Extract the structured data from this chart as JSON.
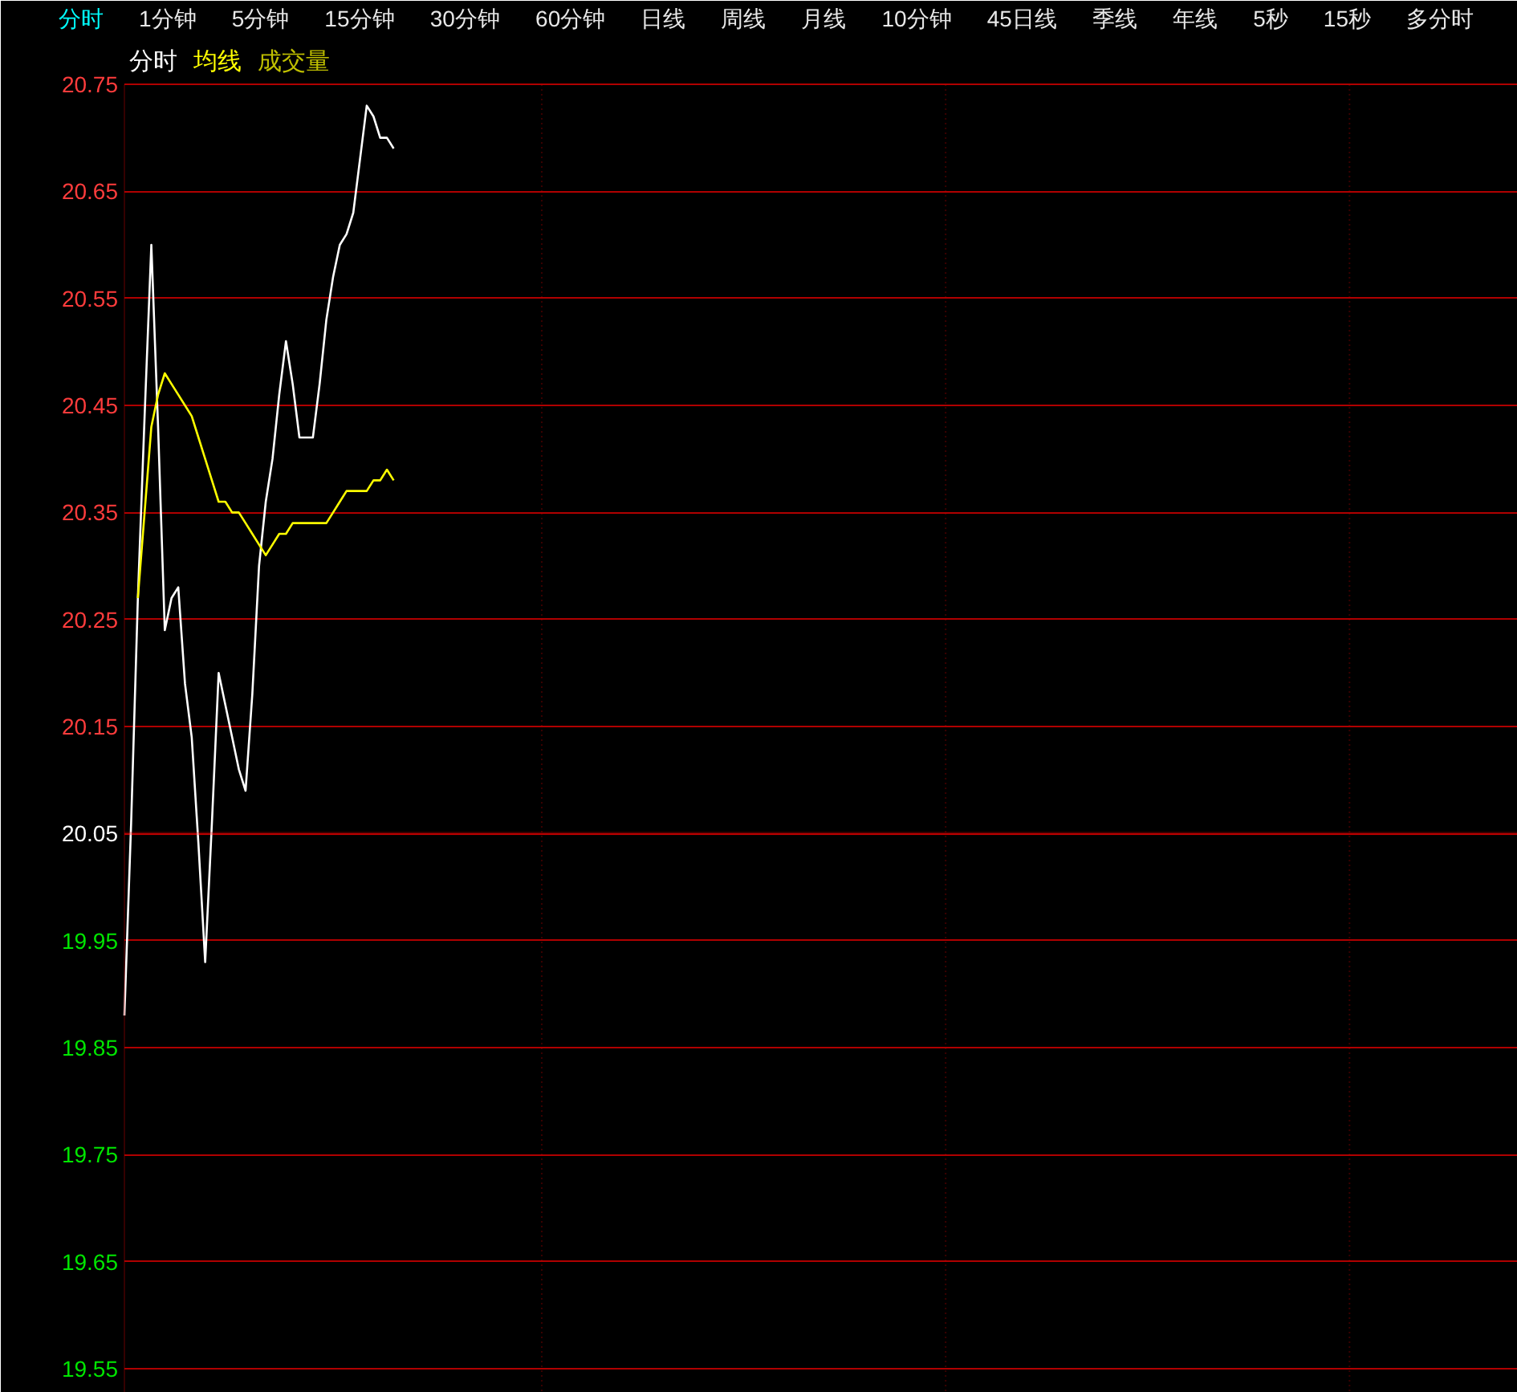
{
  "chart_data": {
    "type": "line",
    "categories": [
      null,
      null,
      null,
      null,
      null,
      null,
      null,
      null,
      null,
      null,
      null,
      null,
      null,
      null,
      null,
      null,
      null,
      null,
      null,
      null,
      null,
      null,
      null,
      null,
      null,
      null,
      null,
      null,
      null,
      null,
      null,
      null,
      null,
      null,
      null,
      null,
      null,
      null,
      null,
      null,
      null,
      null,
      null,
      null,
      null,
      null,
      null,
      null,
      null,
      null,
      null,
      null,
      null,
      null,
      null,
      null,
      null,
      null,
      null,
      null,
      null,
      null,
      null,
      null,
      null,
      null,
      null,
      null,
      null,
      null,
      null,
      null,
      null,
      null,
      null,
      null,
      null,
      null,
      null,
      null,
      null,
      null,
      null,
      null,
      null,
      null,
      null,
      null,
      null,
      null,
      null,
      null,
      null,
      null,
      null,
      null,
      null,
      null,
      null,
      null,
      null,
      null,
      null,
      null,
      null,
      null,
      null,
      null,
      null,
      null,
      null,
      null,
      null,
      null,
      null,
      null,
      null,
      null,
      null,
      null,
      null,
      null,
      null,
      null,
      null,
      null,
      null,
      null,
      null,
      null,
      null,
      null,
      null,
      null,
      null,
      null,
      null,
      null,
      null,
      null,
      null,
      null,
      null,
      null,
      null,
      null,
      null,
      null,
      null,
      null,
      null,
      null,
      null,
      null,
      null,
      null,
      null,
      null,
      null,
      null,
      null,
      null,
      null,
      null,
      null,
      null,
      null,
      null,
      null,
      null,
      null,
      null,
      null,
      null,
      null,
      null,
      null,
      null,
      null,
      null,
      null,
      null,
      null,
      null,
      null,
      null,
      null,
      null,
      null,
      null,
      null,
      null,
      null,
      null,
      null,
      null,
      null,
      null,
      null,
      null,
      null,
      null,
      null,
      null,
      null,
      null,
      null,
      null
    ],
    "series": [
      {
        "name": "分时",
        "color": "#ffffff",
        "values": [
          19.88,
          20.06,
          20.27,
          20.44,
          20.6,
          20.43,
          20.24,
          20.27,
          20.28,
          20.19,
          20.14,
          20.04,
          19.93,
          20.06,
          20.2,
          20.17,
          20.14,
          20.11,
          20.09,
          20.18,
          20.3,
          20.36,
          20.4,
          20.46,
          20.51,
          20.47,
          20.42,
          20.42,
          20.42,
          20.47,
          20.53,
          20.57,
          20.6,
          20.61,
          20.63,
          20.68,
          20.73,
          20.72,
          20.7,
          20.7,
          20.69,
          null,
          null,
          null,
          null,
          null,
          null,
          null,
          null,
          null,
          null,
          null,
          null,
          null,
          null,
          null,
          null,
          null,
          null,
          null,
          null,
          null,
          null,
          null,
          null,
          null,
          null,
          null,
          null,
          null,
          null,
          null,
          null,
          null,
          null,
          null,
          null,
          null,
          null,
          null,
          null,
          null,
          null,
          null,
          null,
          null,
          null,
          null,
          null,
          null,
          null,
          null,
          null,
          null,
          null,
          null,
          null,
          null,
          null,
          null,
          null,
          null,
          null,
          null,
          null,
          null,
          null,
          null,
          null,
          null,
          null,
          null,
          null,
          null,
          null,
          null,
          null,
          null,
          null,
          null,
          null,
          null,
          null,
          null,
          null,
          null,
          null,
          null,
          null,
          null,
          null,
          null,
          null,
          null,
          null,
          null,
          null,
          null,
          null,
          null,
          null,
          null,
          null,
          null,
          null,
          null,
          null,
          null,
          null,
          null,
          null,
          null,
          null,
          null,
          null,
          null,
          null,
          null,
          null,
          null,
          null,
          null,
          null,
          null,
          null,
          null,
          null,
          null,
          null,
          null,
          null,
          null,
          null,
          null,
          null,
          null,
          null,
          null,
          null,
          null,
          null,
          null,
          null,
          null,
          null,
          null,
          null,
          null,
          null,
          null,
          null,
          null,
          null,
          null,
          null,
          null,
          null,
          null,
          null,
          null,
          null,
          null,
          null,
          null,
          null,
          null,
          null,
          null
        ]
      },
      {
        "name": "均线",
        "color": "#ffff00",
        "values": [
          null,
          null,
          20.27,
          20.35,
          20.43,
          20.46,
          20.48,
          20.47,
          20.46,
          20.45,
          20.44,
          20.42,
          20.4,
          20.38,
          20.36,
          20.36,
          20.35,
          20.35,
          20.34,
          20.33,
          20.32,
          20.31,
          20.32,
          20.33,
          20.33,
          20.34,
          20.34,
          20.34,
          20.34,
          20.34,
          20.34,
          20.35,
          20.36,
          20.37,
          20.37,
          20.37,
          20.37,
          20.38,
          20.38,
          20.39,
          20.38,
          null,
          null,
          null,
          null,
          null,
          null,
          null,
          null,
          null,
          null,
          null,
          null,
          null,
          null,
          null,
          null,
          null,
          null,
          null,
          null,
          null,
          null,
          null,
          null,
          null,
          null,
          null,
          null,
          null,
          null,
          null,
          null,
          null,
          null,
          null,
          null,
          null,
          null,
          null,
          null,
          null,
          null,
          null,
          null,
          null,
          null,
          null,
          null,
          null,
          null,
          null,
          null,
          null,
          null,
          null,
          null,
          null,
          null,
          null,
          null,
          null,
          null,
          null,
          null,
          null,
          null,
          null,
          null,
          null,
          null,
          null,
          null,
          null,
          null,
          null,
          null,
          null,
          null,
          null,
          null,
          null,
          null,
          null,
          null,
          null,
          null,
          null,
          null,
          null,
          null,
          null,
          null,
          null,
          null,
          null,
          null,
          null,
          null,
          null,
          null,
          null,
          null,
          null,
          null,
          null,
          null,
          null,
          null,
          null,
          null,
          null,
          null,
          null,
          null,
          null,
          null,
          null,
          null,
          null,
          null,
          null,
          null,
          null,
          null,
          null,
          null,
          null,
          null,
          null,
          null,
          null,
          null,
          null,
          null,
          null,
          null,
          null,
          null,
          null,
          null,
          null,
          null,
          null,
          null,
          null,
          null,
          null,
          null,
          null,
          null,
          null,
          null,
          null,
          null,
          null,
          null,
          null,
          null,
          null,
          null,
          null,
          null,
          null,
          null,
          null,
          null,
          null
        ]
      },
      {
        "name": "成交量",
        "color": "#c0c000",
        "values": [
          null,
          null,
          null,
          null,
          null,
          null,
          null,
          null,
          null,
          null,
          null,
          null,
          null,
          null,
          null,
          null,
          null,
          null,
          null,
          null,
          null,
          null,
          null,
          null,
          null,
          null,
          null,
          null,
          null,
          null,
          null,
          null,
          null,
          null,
          null,
          null,
          null,
          null,
          null,
          null,
          null,
          null,
          null,
          null,
          null,
          null,
          null,
          null,
          null,
          null,
          null,
          null,
          null,
          null,
          null,
          null,
          null,
          null,
          null,
          null,
          null,
          null,
          null,
          null,
          null,
          null,
          null,
          null,
          null,
          null,
          null,
          null,
          null,
          null,
          null,
          null,
          null,
          null,
          null,
          null,
          null,
          null,
          null,
          null,
          null,
          null,
          null,
          null,
          null,
          null,
          null,
          null,
          null,
          null,
          null,
          null,
          null,
          null,
          null,
          null,
          null,
          null,
          null,
          null,
          null,
          null,
          null,
          null,
          null,
          null,
          null,
          null,
          null,
          null,
          null,
          null,
          null,
          null,
          null,
          null,
          null,
          null,
          null,
          null,
          null,
          null,
          null,
          null,
          null,
          null,
          null,
          null,
          null,
          null,
          null,
          null,
          null,
          null,
          null,
          null,
          null,
          null,
          null,
          null,
          null,
          null,
          null,
          null,
          null,
          null,
          null,
          null,
          null,
          null,
          null,
          null,
          null,
          null,
          null,
          null,
          null,
          null,
          null,
          null,
          null,
          null,
          null,
          null,
          null,
          null,
          null,
          null,
          null,
          null,
          null,
          null,
          null,
          null,
          null,
          null,
          null,
          null,
          null,
          null,
          null,
          null,
          null,
          null,
          null,
          null,
          null,
          null,
          null,
          null,
          null,
          null,
          null,
          null,
          null,
          null,
          null,
          null,
          null,
          null,
          null,
          null,
          null,
          null
        ]
      }
    ],
    "ylim": [
      19.55,
      20.75
    ],
    "yticks": [
      19.55,
      19.65,
      19.75,
      19.85,
      19.95,
      20.05,
      20.15,
      20.25,
      20.35,
      20.45,
      20.55,
      20.65,
      20.75
    ],
    "grid": "y",
    "legend": "top left",
    "tick_labels": "y",
    "ref_lines": [
      {
        "axis": "y",
        "value": 20.05,
        "color": "#d80000"
      }
    ],
    "annotations": [
      "分时",
      "1分钟",
      "5分钟",
      "15分钟",
      "30分钟",
      "60分钟",
      "日线",
      "周线",
      "月线",
      "10分钟",
      "45日线",
      "季线",
      "年线",
      "5秒",
      "15秒",
      "多分时"
    ]
  }
}
